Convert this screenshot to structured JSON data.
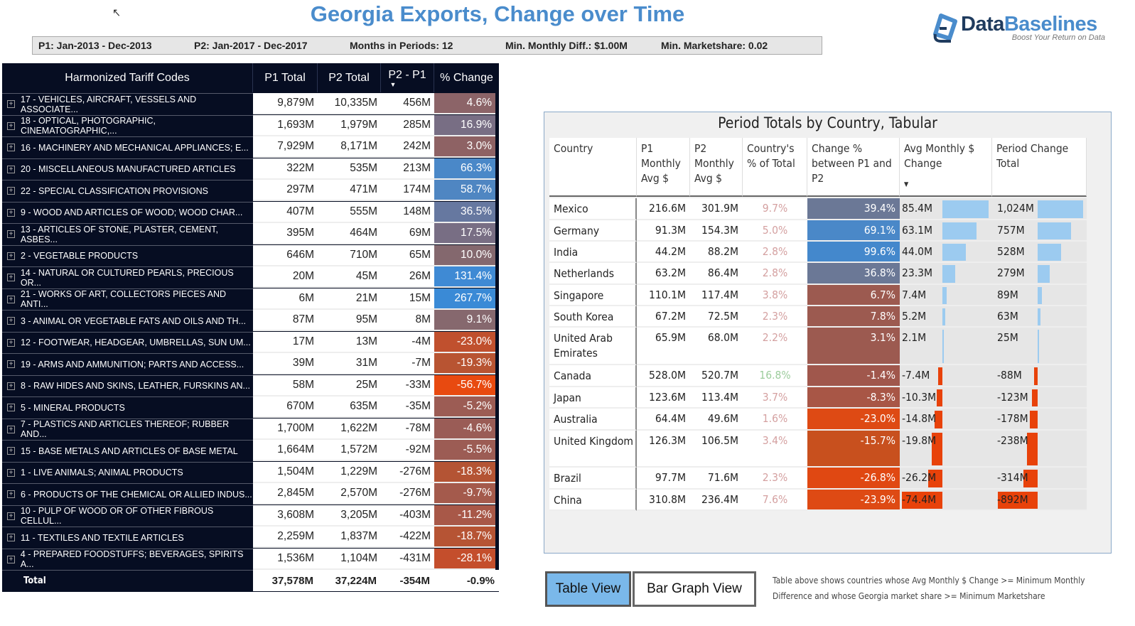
{
  "title": "Georgia Exports, Change over Time",
  "filters": {
    "p1": "P1: Jan-2013 - Dec-2013",
    "p2": "P2: Jan-2017 - Dec-2017",
    "months": "Months in Periods: 12",
    "min_diff": "Min. Monthly Diff.: $1.00M",
    "min_share": "Min. Marketshare: 0.02"
  },
  "logo": {
    "part1": "Data",
    "part2": "Baselines",
    "tagline": "Boost Your Return on Data"
  },
  "colors": {
    "accent": "#4a8ccc",
    "navy": "#060d22",
    "pos_bar": "#9ccbf0",
    "neg_bar": "#e8420a"
  },
  "left_table": {
    "headers": [
      "Harmonized Tariff Codes",
      "P1 Total",
      "P2 Total",
      "P2 - P1",
      "% Change"
    ],
    "rows": [
      {
        "name": "17 - VEHICLES, AIRCRAFT, VESSELS AND ASSOCIATE...",
        "p1": "9,879M",
        "p2": "10,335M",
        "diff": "456M",
        "pct": "4.6%",
        "color": "#8c6468"
      },
      {
        "name": "18 - OPTICAL, PHOTOGRAPHIC, CINEMATOGRAPHIC,...",
        "p1": "1,693M",
        "p2": "1,979M",
        "diff": "285M",
        "pct": "16.9%",
        "color": "#786e84"
      },
      {
        "name": "16 - MACHINERY AND MECHANICAL APPLIANCES; E...",
        "p1": "7,929M",
        "p2": "8,171M",
        "diff": "242M",
        "pct": "3.0%",
        "color": "#8e6264"
      },
      {
        "name": "20 - MISCELLANEOUS MANUFACTURED ARTICLES",
        "p1": "322M",
        "p2": "535M",
        "diff": "213M",
        "pct": "66.3%",
        "color": "#4a88c8"
      },
      {
        "name": "22 - SPECIAL CLASSIFICATION PROVISIONS",
        "p1": "297M",
        "p2": "471M",
        "diff": "174M",
        "pct": "58.7%",
        "color": "#4f86c2"
      },
      {
        "name": "9 - WOOD AND ARTICLES OF WOOD; WOOD CHAR...",
        "p1": "407M",
        "p2": "555M",
        "diff": "148M",
        "pct": "36.5%",
        "color": "#6678a0"
      },
      {
        "name": "13 - ARTICLES OF STONE, PLASTER, CEMENT, ASBES...",
        "p1": "395M",
        "p2": "464M",
        "diff": "69M",
        "pct": "17.5%",
        "color": "#786e84"
      },
      {
        "name": "2 - VEGETABLE PRODUCTS",
        "p1": "646M",
        "p2": "710M",
        "diff": "65M",
        "pct": "10.0%",
        "color": "#84686e"
      },
      {
        "name": "14 - NATURAL OR CULTURED PEARLS, PRECIOUS OR...",
        "p1": "20M",
        "p2": "45M",
        "diff": "26M",
        "pct": "131.4%",
        "color": "#3f8ad4"
      },
      {
        "name": "21 - WORKS OF ART, COLLECTORS PIECES AND ANTI...",
        "p1": "6M",
        "p2": "21M",
        "diff": "15M",
        "pct": "267.7%",
        "color": "#3a8ad6"
      },
      {
        "name": "3 - ANIMAL OR VEGETABLE FATS AND OILS AND TH...",
        "p1": "87M",
        "p2": "95M",
        "diff": "8M",
        "pct": "9.1%",
        "color": "#86686e"
      },
      {
        "name": "12 - FOOTWEAR, HEADGEAR, UMBRELLAS, SUN UM...",
        "p1": "17M",
        "p2": "13M",
        "diff": "-4M",
        "pct": "-23.0%",
        "color": "#c0502e"
      },
      {
        "name": "19 - ARMS AND AMMUNITION; PARTS AND ACCESS...",
        "p1": "39M",
        "p2": "31M",
        "diff": "-7M",
        "pct": "-19.3%",
        "color": "#b85432"
      },
      {
        "name": "8 - RAW HIDES AND SKINS, LEATHER, FURSKINS AN...",
        "p1": "58M",
        "p2": "25M",
        "diff": "-33M",
        "pct": "-56.7%",
        "color": "#e84a10"
      },
      {
        "name": "5 - MINERAL PRODUCTS",
        "p1": "670M",
        "p2": "635M",
        "diff": "-35M",
        "pct": "-5.2%",
        "color": "#9c5c54"
      },
      {
        "name": "7 - PLASTICS AND ARTICLES THEREOF; RUBBER AND...",
        "p1": "1,700M",
        "p2": "1,622M",
        "diff": "-78M",
        "pct": "-4.6%",
        "color": "#9a5c56"
      },
      {
        "name": "15 - BASE METALS AND ARTICLES OF BASE METAL",
        "p1": "1,664M",
        "p2": "1,572M",
        "diff": "-92M",
        "pct": "-5.5%",
        "color": "#9c5c54"
      },
      {
        "name": "1 - LIVE ANIMALS; ANIMAL PRODUCTS",
        "p1": "1,504M",
        "p2": "1,229M",
        "diff": "-276M",
        "pct": "-18.3%",
        "color": "#b45434"
      },
      {
        "name": "6 - PRODUCTS OF THE CHEMICAL OR ALLIED INDUS...",
        "p1": "2,845M",
        "p2": "2,570M",
        "diff": "-276M",
        "pct": "-9.7%",
        "color": "#a45a4c"
      },
      {
        "name": "10 - PULP OF WOOD OR OF OTHER FIBROUS CELLUL...",
        "p1": "3,608M",
        "p2": "3,205M",
        "diff": "-403M",
        "pct": "-11.2%",
        "color": "#a85848"
      },
      {
        "name": "11 - TEXTILES AND TEXTILE ARTICLES",
        "p1": "2,259M",
        "p2": "1,837M",
        "diff": "-422M",
        "pct": "-18.7%",
        "color": "#b65434"
      },
      {
        "name": "4 - PREPARED FOODSTUFFS; BEVERAGES, SPIRITS A...",
        "p1": "1,536M",
        "p2": "1,104M",
        "diff": "-431M",
        "pct": "-28.1%",
        "color": "#c44e2c"
      }
    ],
    "total": {
      "label": "Total",
      "p1": "37,578M",
      "p2": "37,224M",
      "diff": "-354M",
      "pct": "-0.9%"
    }
  },
  "right_table": {
    "title": "Period Totals by Country, Tabular",
    "headers": [
      "Country",
      "P1 Monthly Avg $",
      "P2 Monthly Avg $",
      "Country's % of Total",
      "Change % between P1 and P2",
      "Avg Monthly $ Change",
      "Period Change Total"
    ],
    "rows": [
      {
        "country": "Mexico",
        "p1": "216.6M",
        "p2": "301.9M",
        "share": "9.7%",
        "chg": "39.4%",
        "chg_color": "#6b7896",
        "avg": "85.4M",
        "avg_val": 85.4,
        "period": "1,024M",
        "period_val": 1024
      },
      {
        "country": "Germany",
        "p1": "91.3M",
        "p2": "154.3M",
        "share": "5.0%",
        "chg": "69.1%",
        "chg_color": "#4a88c8",
        "avg": "63.1M",
        "avg_val": 63.1,
        "period": "757M",
        "period_val": 757
      },
      {
        "country": "India",
        "p1": "44.2M",
        "p2": "88.2M",
        "share": "2.8%",
        "chg": "99.6%",
        "chg_color": "#4488cc",
        "avg": "44.0M",
        "avg_val": 44.0,
        "period": "528M",
        "period_val": 528
      },
      {
        "country": "Netherlands",
        "p1": "63.2M",
        "p2": "86.4M",
        "share": "2.8%",
        "chg": "36.8%",
        "chg_color": "#6b7896",
        "avg": "23.3M",
        "avg_val": 23.3,
        "period": "279M",
        "period_val": 279
      },
      {
        "country": "Singapore",
        "p1": "110.1M",
        "p2": "117.4M",
        "share": "3.8%",
        "chg": "6.7%",
        "chg_color": "#9c5a50",
        "avg": "7.4M",
        "avg_val": 7.4,
        "period": "89M",
        "period_val": 89
      },
      {
        "country": "South Korea",
        "p1": "67.2M",
        "p2": "72.5M",
        "share": "2.3%",
        "chg": "7.8%",
        "chg_color": "#9c5a50",
        "avg": "5.2M",
        "avg_val": 5.2,
        "period": "63M",
        "period_val": 63
      },
      {
        "country": "United Arab Emirates",
        "p1": "65.9M",
        "p2": "68.0M",
        "share": "2.2%",
        "chg": "3.1%",
        "chg_color": "#9c5a50",
        "avg": "2.1M",
        "avg_val": 2.1,
        "period": "25M",
        "period_val": 25
      },
      {
        "country": "Canada",
        "p1": "528.0M",
        "p2": "520.7M",
        "share": "16.8%",
        "share_color": "#9ccc9c",
        "chg": "-1.4%",
        "chg_color": "#a0574c",
        "avg": "-7.4M",
        "avg_val": -7.4,
        "period": "-88M",
        "period_val": -88
      },
      {
        "country": "Japan",
        "p1": "123.6M",
        "p2": "113.4M",
        "share": "3.7%",
        "chg": "-8.3%",
        "chg_color": "#a85646",
        "avg": "-10.3M",
        "avg_val": -10.3,
        "period": "-123M",
        "period_val": -123
      },
      {
        "country": "Australia",
        "p1": "64.4M",
        "p2": "49.6M",
        "share": "1.6%",
        "chg": "-23.0%",
        "chg_color": "#de4a14",
        "avg": "-14.8M",
        "avg_val": -14.8,
        "period": "-178M",
        "period_val": -178
      },
      {
        "country": "United Kingdom",
        "p1": "126.3M",
        "p2": "106.5M",
        "share": "3.4%",
        "chg": "-15.7%",
        "chg_color": "#c8501e",
        "avg": "-19.8M",
        "avg_val": -19.8,
        "period": "-238M",
        "period_val": -238
      },
      {
        "country": "Brazil",
        "p1": "97.7M",
        "p2": "71.6M",
        "share": "2.3%",
        "chg": "-26.8%",
        "chg_color": "#e04812",
        "avg": "-26.2M",
        "avg_val": -26.2,
        "period": "-314M",
        "period_val": -314
      },
      {
        "country": "China",
        "p1": "310.8M",
        "p2": "236.4M",
        "share": "7.6%",
        "chg": "-23.9%",
        "chg_color": "#de4a14",
        "avg": "-74.4M",
        "avg_val": -74.4,
        "period": "-892M",
        "period_val": -892
      }
    ]
  },
  "buttons": {
    "table_view": "Table View",
    "bar_graph_view": "Bar Graph View"
  },
  "note": "Table above shows countries whose Avg Monthly $ Change >= Minimum Monthly Difference and whose Georgia market share >= Minimum Marketshare"
}
